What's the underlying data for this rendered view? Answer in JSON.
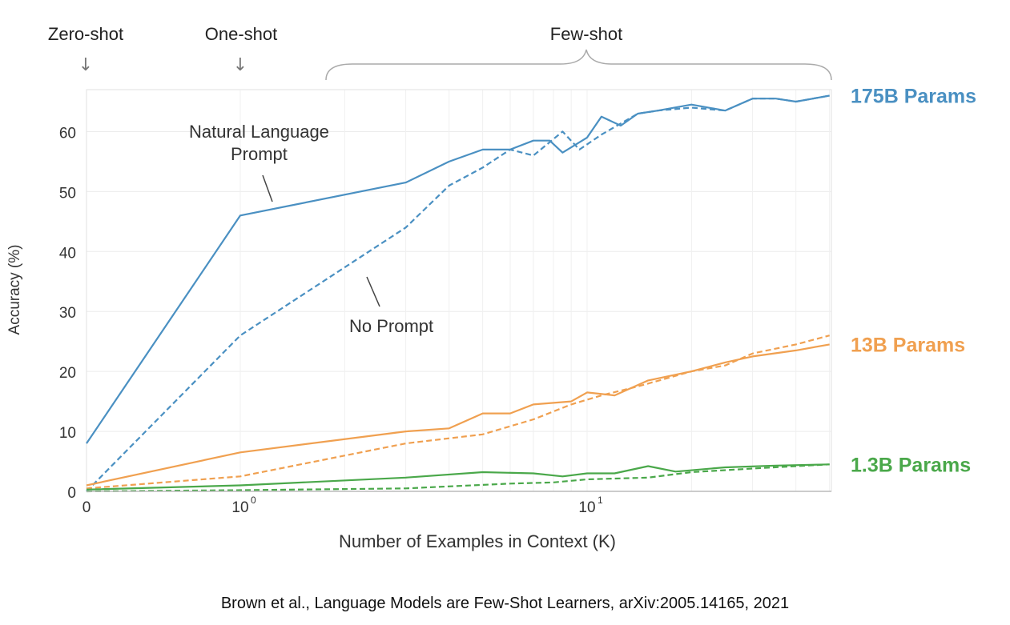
{
  "chart_data": {
    "type": "line",
    "xlabel": "Number of Examples in Context  (K)",
    "ylabel": "Accuracy (%)",
    "x_scale": "log (with 0)",
    "ylim": [
      0,
      67
    ],
    "y_ticks": [
      "0",
      "10",
      "20",
      "30",
      "40",
      "50",
      "60"
    ],
    "x_tick_labels": [
      {
        "value": 0,
        "base": "0",
        "exp": ""
      },
      {
        "value": 1,
        "base": "10",
        "exp": "0"
      },
      {
        "value": 10,
        "base": "10",
        "exp": "1"
      }
    ],
    "regions": {
      "zero_shot": "Zero-shot",
      "one_shot": "One-shot",
      "few_shot": "Few-shot"
    },
    "annotations": {
      "natural_language": [
        "Natural Language",
        "Prompt"
      ],
      "no_prompt": "No Prompt"
    },
    "line_styles": {
      "solid": "Natural Language Prompt",
      "dashed": "No Prompt"
    },
    "groups": [
      {
        "label": "175B Params",
        "color": "#4a90c2",
        "series": [
          {
            "style": "solid",
            "points": [
              [
                0,
                8
              ],
              [
                1,
                46
              ],
              [
                3,
                51.5
              ],
              [
                4,
                55
              ],
              [
                5,
                57
              ],
              [
                6,
                57
              ],
              [
                7,
                58.5
              ],
              [
                7.8,
                58.5
              ],
              [
                8.5,
                56.5
              ],
              [
                10,
                59
              ],
              [
                11,
                62.5
              ],
              [
                12.5,
                61
              ],
              [
                14,
                63
              ],
              [
                16,
                63.5
              ],
              [
                20,
                64.5
              ],
              [
                25,
                63.5
              ],
              [
                30,
                65.5
              ],
              [
                35,
                65.5
              ],
              [
                40,
                65
              ],
              [
                50,
                66
              ]
            ]
          },
          {
            "style": "dashed",
            "points": [
              [
                0,
                0
              ],
              [
                1,
                26
              ],
              [
                3,
                44
              ],
              [
                4,
                51
              ],
              [
                5,
                54
              ],
              [
                6,
                57
              ],
              [
                7,
                56
              ],
              [
                8.5,
                60
              ],
              [
                9.5,
                57
              ],
              [
                11,
                59.5
              ],
              [
                14,
                63
              ],
              [
                16,
                63.5
              ],
              [
                20,
                64
              ],
              [
                25,
                63.5
              ],
              [
                30,
                65.5
              ],
              [
                35,
                65.5
              ],
              [
                40,
                65
              ],
              [
                50,
                66
              ]
            ]
          }
        ]
      },
      {
        "label": "13B Params",
        "color": "#f0a050",
        "series": [
          {
            "style": "solid",
            "points": [
              [
                0,
                1
              ],
              [
                1,
                6.5
              ],
              [
                3,
                10
              ],
              [
                4,
                10.5
              ],
              [
                5,
                13
              ],
              [
                6,
                13
              ],
              [
                7,
                14.5
              ],
              [
                9,
                15
              ],
              [
                10,
                16.5
              ],
              [
                12,
                16
              ],
              [
                15,
                18.5
              ],
              [
                20,
                20
              ],
              [
                25,
                21.5
              ],
              [
                30,
                22.5
              ],
              [
                40,
                23.5
              ],
              [
                50,
                24.5
              ]
            ]
          },
          {
            "style": "dashed",
            "points": [
              [
                0,
                0.5
              ],
              [
                1,
                2.5
              ],
              [
                3,
                8
              ],
              [
                5,
                9.5
              ],
              [
                7,
                12
              ],
              [
                9,
                14.5
              ],
              [
                11,
                16
              ],
              [
                14,
                17.5
              ],
              [
                20,
                20
              ],
              [
                25,
                21
              ],
              [
                30,
                23
              ],
              [
                40,
                24.5
              ],
              [
                50,
                26
              ]
            ]
          }
        ]
      },
      {
        "label": "1.3B Params",
        "color": "#4aa84a",
        "series": [
          {
            "style": "solid",
            "points": [
              [
                0,
                0.3
              ],
              [
                1,
                1
              ],
              [
                3,
                2.3
              ],
              [
                5,
                3.2
              ],
              [
                7,
                3
              ],
              [
                8.5,
                2.5
              ],
              [
                10,
                3
              ],
              [
                12,
                3
              ],
              [
                15,
                4.2
              ],
              [
                18,
                3.3
              ],
              [
                25,
                4
              ],
              [
                35,
                4.3
              ],
              [
                50,
                4.5
              ]
            ]
          },
          {
            "style": "dashed",
            "points": [
              [
                0,
                0
              ],
              [
                1,
                0.2
              ],
              [
                3,
                0.5
              ],
              [
                6,
                1.3
              ],
              [
                8,
                1.5
              ],
              [
                10,
                2
              ],
              [
                15,
                2.3
              ],
              [
                20,
                3.2
              ],
              [
                30,
                3.8
              ],
              [
                40,
                4.2
              ],
              [
                50,
                4.5
              ]
            ]
          }
        ]
      }
    ],
    "grid": true
  },
  "caption": "Brown et al., Language Models are Few-Shot Learners, arXiv:2005.14165, 2021"
}
